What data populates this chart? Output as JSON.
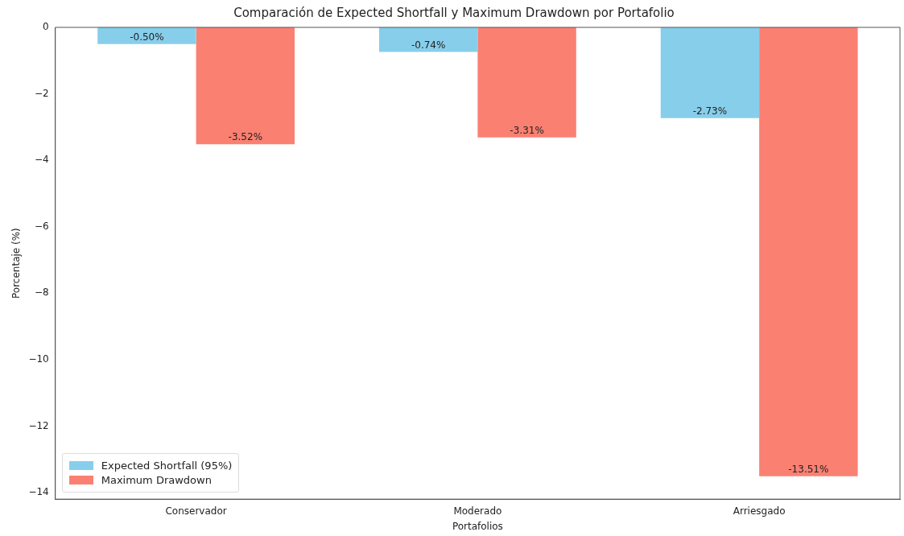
{
  "chart_data": {
    "type": "bar",
    "title": "Comparación de Expected Shortfall y Maximum Drawdown por Portafolio",
    "xlabel": "Portafolios",
    "ylabel": "Porcentaje (%)",
    "categories": [
      "Conservador",
      "Moderado",
      "Arriesgado"
    ],
    "series": [
      {
        "name": "Expected Shortfall (95%)",
        "color": "#87ceeb",
        "values": [
          -0.5,
          -0.74,
          -2.73
        ],
        "value_labels": [
          "-0.50%",
          "-0.74%",
          "-2.73%"
        ]
      },
      {
        "name": "Maximum Drawdown",
        "color": "#fa8072",
        "values": [
          -3.52,
          -3.31,
          -13.51
        ],
        "value_labels": [
          "-3.52%",
          "-3.31%",
          "-13.51%"
        ]
      }
    ],
    "ylim": [
      -14.2,
      0
    ],
    "yticks": [
      {
        "value": 0,
        "label": "0"
      },
      {
        "value": -2,
        "label": "−2"
      },
      {
        "value": -4,
        "label": "−4"
      },
      {
        "value": -6,
        "label": "−6"
      },
      {
        "value": -8,
        "label": "−8"
      },
      {
        "value": -10,
        "label": "−10"
      },
      {
        "value": -12,
        "label": "−12"
      },
      {
        "value": -14,
        "label": "−14"
      }
    ],
    "grid": false,
    "legend": "bottom left"
  }
}
